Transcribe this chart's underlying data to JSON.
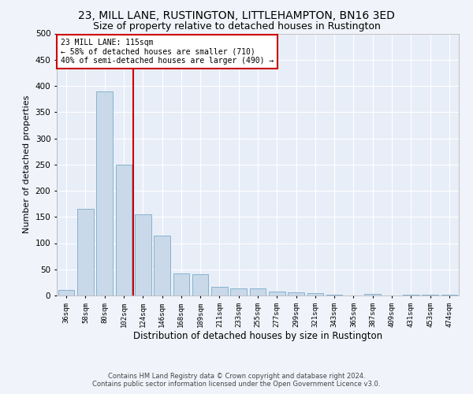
{
  "title1": "23, MILL LANE, RUSTINGTON, LITTLEHAMPTON, BN16 3ED",
  "title2": "Size of property relative to detached houses in Rustington",
  "xlabel": "Distribution of detached houses by size in Rustington",
  "ylabel": "Number of detached properties",
  "categories": [
    "36sqm",
    "58sqm",
    "80sqm",
    "102sqm",
    "124sqm",
    "146sqm",
    "168sqm",
    "189sqm",
    "211sqm",
    "233sqm",
    "255sqm",
    "277sqm",
    "299sqm",
    "321sqm",
    "343sqm",
    "365sqm",
    "387sqm",
    "409sqm",
    "431sqm",
    "453sqm",
    "474sqm"
  ],
  "values": [
    10,
    165,
    390,
    250,
    155,
    115,
    42,
    40,
    17,
    14,
    13,
    8,
    6,
    4,
    2,
    0,
    3,
    0,
    2,
    2,
    2
  ],
  "bar_color": "#c9d9ea",
  "bar_edge_color": "#7aaac8",
  "vline_index": 3.5,
  "vline_color": "#cc0000",
  "annotation_line1": "23 MILL LANE: 115sqm",
  "annotation_line2": "← 58% of detached houses are smaller (710)",
  "annotation_line3": "40% of semi-detached houses are larger (490) →",
  "annotation_box_color": "#cc0000",
  "footer1": "Contains HM Land Registry data © Crown copyright and database right 2024.",
  "footer2": "Contains public sector information licensed under the Open Government Licence v3.0.",
  "ylim": [
    0,
    500
  ],
  "yticks": [
    0,
    50,
    100,
    150,
    200,
    250,
    300,
    350,
    400,
    450,
    500
  ],
  "bg_color": "#f0f4fa",
  "plot_bg_color": "#e8eef8",
  "grid_color": "#ffffff",
  "title1_fontsize": 10,
  "title2_fontsize": 9,
  "xlabel_fontsize": 8.5,
  "ylabel_fontsize": 8
}
